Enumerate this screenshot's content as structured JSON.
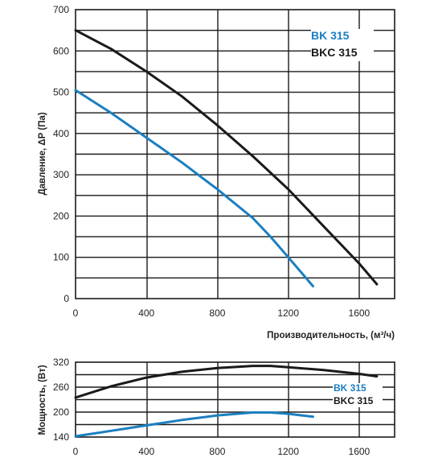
{
  "chart_data": [
    {
      "type": "line",
      "xlabel": "Производительность, (м³/ч)",
      "ylabel": "Давление, ΔP (Па)",
      "xlim": [
        0,
        1800
      ],
      "ylim": [
        0,
        700
      ],
      "xticks": [
        0,
        400,
        800,
        1200,
        1600
      ],
      "yticks": [
        0,
        100,
        200,
        300,
        400,
        500,
        600,
        700
      ],
      "grid": true,
      "legend_position": "top-right",
      "series": [
        {
          "name": "BK 315",
          "color": "#1a7fc0",
          "x": [
            0,
            200,
            400,
            600,
            800,
            1000,
            1100,
            1200,
            1340
          ],
          "y": [
            505,
            450,
            390,
            330,
            265,
            195,
            150,
            100,
            30
          ]
        },
        {
          "name": "BKC 315",
          "color": "#1a1a1a",
          "x": [
            0,
            200,
            400,
            600,
            800,
            1000,
            1200,
            1400,
            1600,
            1700
          ],
          "y": [
            650,
            605,
            550,
            490,
            420,
            345,
            265,
            175,
            85,
            35
          ]
        }
      ]
    },
    {
      "type": "line",
      "xlabel": "",
      "ylabel": "Мощность, (Вт)",
      "xlim": [
        0,
        1800
      ],
      "ylim": [
        140,
        320
      ],
      "xticks": [
        0,
        400,
        800,
        1200,
        1600
      ],
      "yticks": [
        140,
        200,
        260,
        320
      ],
      "grid": true,
      "legend_position": "right",
      "series": [
        {
          "name": "BK 315",
          "color": "#1a7fc0",
          "x": [
            0,
            200,
            400,
            600,
            800,
            1000,
            1100,
            1200,
            1340
          ],
          "y": [
            142,
            155,
            168,
            181,
            192,
            199,
            199,
            196,
            189
          ]
        },
        {
          "name": "BKC 315",
          "color": "#1a1a1a",
          "x": [
            0,
            200,
            400,
            600,
            800,
            1000,
            1100,
            1200,
            1400,
            1600,
            1700
          ],
          "y": [
            235,
            262,
            283,
            297,
            306,
            311,
            311,
            308,
            301,
            292,
            286
          ]
        }
      ]
    }
  ]
}
